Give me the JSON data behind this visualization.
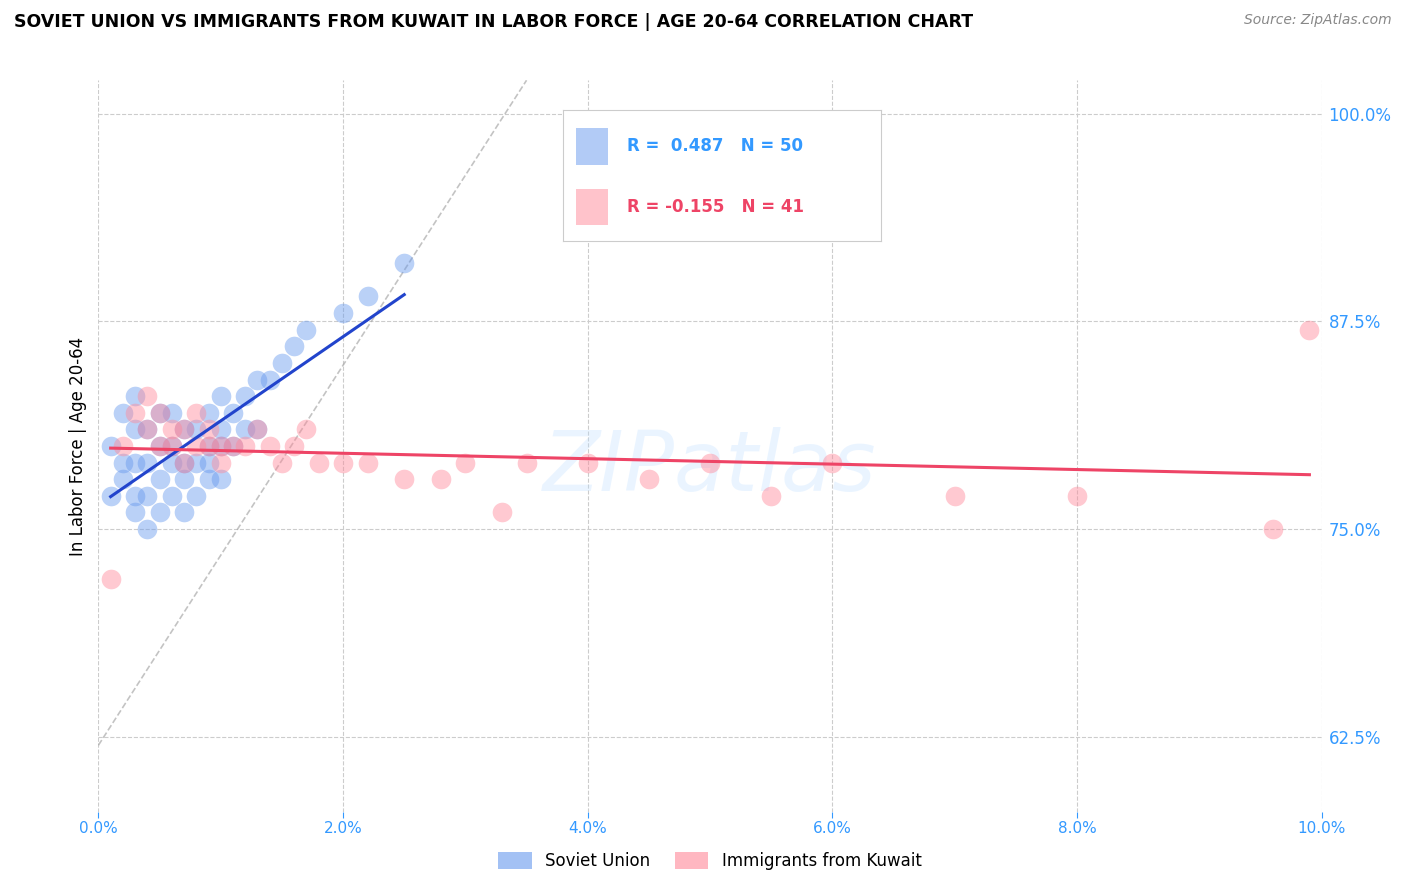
{
  "title": "SOVIET UNION VS IMMIGRANTS FROM KUWAIT IN LABOR FORCE | AGE 20-64 CORRELATION CHART",
  "source": "Source: ZipAtlas.com",
  "ylabel": "In Labor Force | Age 20-64",
  "xlim": [
    0.0,
    0.1
  ],
  "ylim": [
    0.58,
    1.02
  ],
  "xticks": [
    0.0,
    0.02,
    0.04,
    0.06,
    0.08,
    0.1
  ],
  "xticklabels": [
    "0.0%",
    "2.0%",
    "4.0%",
    "6.0%",
    "8.0%",
    "10.0%"
  ],
  "ytick_positions": [
    0.625,
    0.75,
    0.875,
    1.0
  ],
  "ytick_labels": [
    "62.5%",
    "75.0%",
    "87.5%",
    "100.0%"
  ],
  "legend_label1": "Soviet Union",
  "legend_label2": "Immigrants from Kuwait",
  "R1": 0.487,
  "N1": 50,
  "R2": -0.155,
  "N2": 41,
  "blue_color": "#6699ee",
  "pink_color": "#ff8899",
  "blue_line_color": "#2244cc",
  "pink_line_color": "#ee4466",
  "axis_label_color": "#3399ff",
  "watermark": "ZIPatlas",
  "soviet_x": [
    0.001,
    0.001,
    0.002,
    0.002,
    0.002,
    0.003,
    0.003,
    0.003,
    0.003,
    0.003,
    0.004,
    0.004,
    0.004,
    0.004,
    0.005,
    0.005,
    0.005,
    0.005,
    0.006,
    0.006,
    0.006,
    0.006,
    0.007,
    0.007,
    0.007,
    0.007,
    0.008,
    0.008,
    0.008,
    0.009,
    0.009,
    0.009,
    0.009,
    0.01,
    0.01,
    0.01,
    0.01,
    0.011,
    0.011,
    0.012,
    0.012,
    0.013,
    0.013,
    0.014,
    0.015,
    0.016,
    0.017,
    0.02,
    0.022,
    0.025
  ],
  "soviet_y": [
    0.77,
    0.8,
    0.78,
    0.79,
    0.82,
    0.76,
    0.77,
    0.79,
    0.81,
    0.83,
    0.75,
    0.77,
    0.79,
    0.81,
    0.76,
    0.78,
    0.8,
    0.82,
    0.77,
    0.79,
    0.8,
    0.82,
    0.76,
    0.78,
    0.79,
    0.81,
    0.77,
    0.79,
    0.81,
    0.78,
    0.79,
    0.8,
    0.82,
    0.78,
    0.8,
    0.81,
    0.83,
    0.8,
    0.82,
    0.81,
    0.83,
    0.81,
    0.84,
    0.84,
    0.85,
    0.86,
    0.87,
    0.88,
    0.89,
    0.91
  ],
  "kuwait_x": [
    0.001,
    0.002,
    0.003,
    0.004,
    0.004,
    0.005,
    0.005,
    0.006,
    0.006,
    0.007,
    0.007,
    0.008,
    0.008,
    0.009,
    0.009,
    0.01,
    0.01,
    0.011,
    0.012,
    0.013,
    0.014,
    0.015,
    0.016,
    0.017,
    0.018,
    0.02,
    0.022,
    0.025,
    0.028,
    0.03,
    0.033,
    0.035,
    0.04,
    0.045,
    0.05,
    0.055,
    0.06,
    0.07,
    0.08,
    0.096,
    0.099
  ],
  "kuwait_y": [
    0.72,
    0.8,
    0.82,
    0.81,
    0.83,
    0.8,
    0.82,
    0.8,
    0.81,
    0.79,
    0.81,
    0.8,
    0.82,
    0.8,
    0.81,
    0.79,
    0.8,
    0.8,
    0.8,
    0.81,
    0.8,
    0.79,
    0.8,
    0.81,
    0.79,
    0.79,
    0.79,
    0.78,
    0.78,
    0.79,
    0.76,
    0.79,
    0.79,
    0.78,
    0.79,
    0.77,
    0.79,
    0.77,
    0.77,
    0.75,
    0.87
  ]
}
